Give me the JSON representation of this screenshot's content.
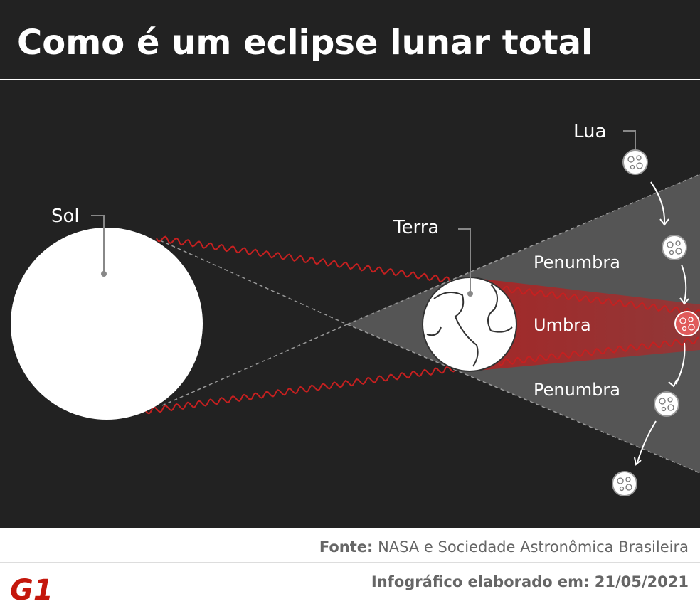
{
  "header": {
    "title": "Como é um eclipse lunar total"
  },
  "labels": {
    "sun": "Sol",
    "earth": "Terra",
    "moon": "Lua"
  },
  "zones": {
    "penumbra_top": "Penumbra",
    "umbra": "Umbra",
    "penumbra_bottom": "Penumbra"
  },
  "footer": {
    "source_label": "Fonte:",
    "source": "NASA e Sociedade Astronômica Brasileira",
    "date_label": "Infográfico elaborado em:",
    "date": "21/05/2021",
    "logo": "G1"
  }
}
